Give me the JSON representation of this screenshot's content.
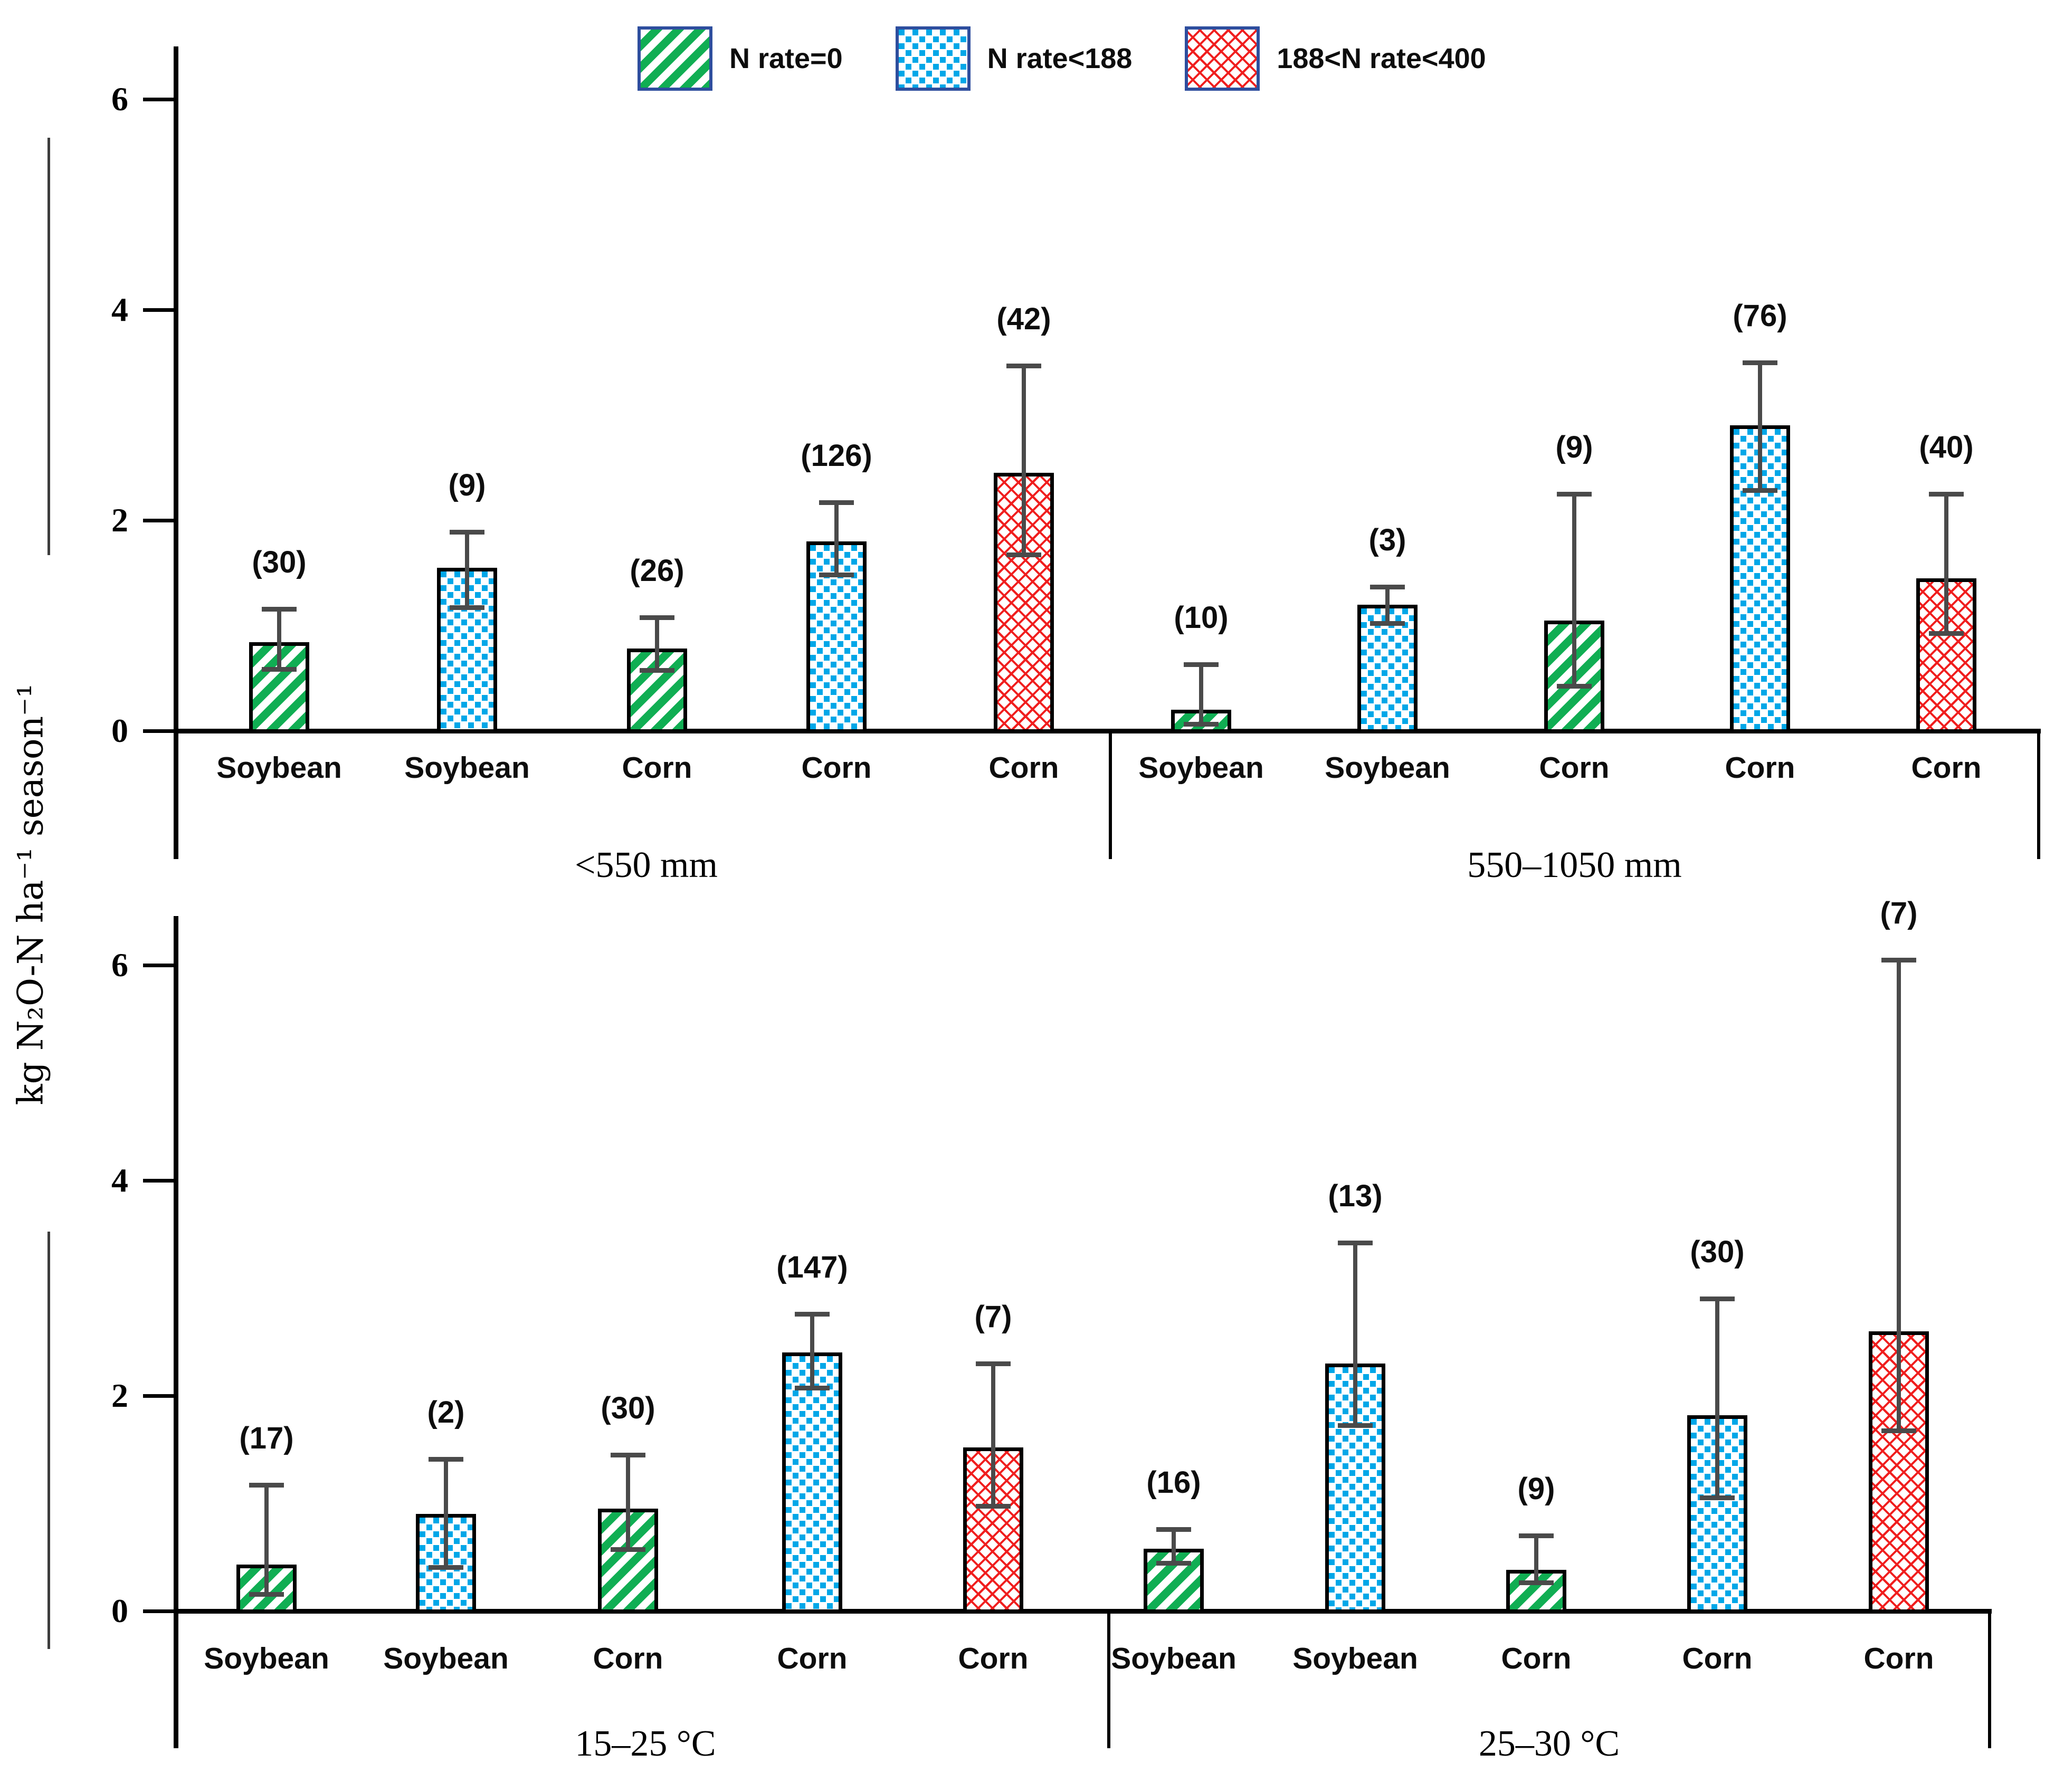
{
  "legend": {
    "items": [
      {
        "label": "N rate=0",
        "pattern": "green-diagonal-hatch"
      },
      {
        "label": "N rate<188",
        "pattern": "blue-dot-speckle"
      },
      {
        "label": "188<N rate<400",
        "pattern": "red-cross-hatch"
      }
    ]
  },
  "y_axis": {
    "title": "kg N₂O-N ha⁻¹ season⁻¹",
    "ticks": [
      0,
      2,
      4,
      6
    ],
    "tick_labels": [
      "0",
      "2",
      "4",
      "6"
    ],
    "ylim": [
      0,
      6.6
    ]
  },
  "chart_data": {
    "type": "bar",
    "title": "",
    "xlabel": "",
    "ylabel": "kg N2O-N ha-1 season-1",
    "grid": false,
    "legend_position": "top",
    "error_bars": true,
    "panels": [
      {
        "id": "top",
        "groups": [
          {
            "label": "<550 mm",
            "bars": [
              {
                "category": "Soybean",
                "series": "N rate=0",
                "n": 30,
                "count_label": "(30)",
                "value": 0.84,
                "err_low": 0.58,
                "err_high": 1.16
              },
              {
                "category": "Soybean",
                "series": "N rate<188",
                "n": 9,
                "count_label": "(9)",
                "value": 1.55,
                "err_low": 1.17,
                "err_high": 1.89
              },
              {
                "category": "Corn",
                "series": "N rate=0",
                "n": 26,
                "count_label": "(26)",
                "value": 0.78,
                "err_low": 0.57,
                "err_high": 1.08
              },
              {
                "category": "Corn",
                "series": "N rate<188",
                "n": 126,
                "count_label": "(126)",
                "value": 1.8,
                "err_low": 1.48,
                "err_high": 2.17
              },
              {
                "category": "Corn",
                "series": "188<N rate<400",
                "n": 42,
                "count_label": "(42)",
                "value": 2.45,
                "err_low": 1.67,
                "err_high": 3.47
              }
            ]
          },
          {
            "label": "550–1050 mm",
            "bars": [
              {
                "category": "Soybean",
                "series": "N rate=0",
                "n": 10,
                "count_label": "(10)",
                "value": 0.2,
                "err_low": 0.06,
                "err_high": 0.63
              },
              {
                "category": "Soybean",
                "series": "N rate<188",
                "n": 3,
                "count_label": "(3)",
                "value": 1.2,
                "err_low": 1.02,
                "err_high": 1.37
              },
              {
                "category": "Corn",
                "series": "N rate=0",
                "n": 9,
                "count_label": "(9)",
                "value": 1.05,
                "err_low": 0.42,
                "err_high": 2.25
              },
              {
                "category": "Corn",
                "series": "N rate<188",
                "n": 76,
                "count_label": "(76)",
                "value": 2.9,
                "err_low": 2.28,
                "err_high": 3.5
              },
              {
                "category": "Corn",
                "series": "188<N rate<400",
                "n": 40,
                "count_label": "(40)",
                "value": 1.45,
                "err_low": 0.92,
                "err_high": 2.25
              }
            ]
          }
        ]
      },
      {
        "id": "bottom",
        "groups": [
          {
            "label": "15–25 °C",
            "bars": [
              {
                "category": "Soybean",
                "series": "N rate=0",
                "n": 17,
                "count_label": "(17)",
                "value": 0.43,
                "err_low": 0.15,
                "err_high": 1.17
              },
              {
                "category": "Soybean",
                "series": "N rate<188",
                "n": 2,
                "count_label": "(2)",
                "value": 0.9,
                "err_low": 0.4,
                "err_high": 1.41
              },
              {
                "category": "Corn",
                "series": "N rate=0",
                "n": 30,
                "count_label": "(30)",
                "value": 0.95,
                "err_low": 0.57,
                "err_high": 1.45
              },
              {
                "category": "Corn",
                "series": "N rate<188",
                "n": 147,
                "count_label": "(147)",
                "value": 2.4,
                "err_low": 2.07,
                "err_high": 2.76
              },
              {
                "category": "Corn",
                "series": "188<N rate<400",
                "n": 7,
                "count_label": "(7)",
                "value": 1.52,
                "err_low": 0.97,
                "err_high": 2.3
              }
            ]
          },
          {
            "label": "25–30 °C",
            "bars": [
              {
                "category": "Soybean",
                "series": "N rate=0",
                "n": 16,
                "count_label": "(16)",
                "value": 0.58,
                "err_low": 0.44,
                "err_high": 0.76
              },
              {
                "category": "Soybean",
                "series": "N rate<188",
                "n": 13,
                "count_label": "(13)",
                "value": 2.3,
                "err_low": 1.72,
                "err_high": 3.42
              },
              {
                "category": "Corn",
                "series": "N rate=0",
                "n": 9,
                "count_label": "(9)",
                "value": 0.38,
                "err_low": 0.26,
                "err_high": 0.7
              },
              {
                "category": "Corn",
                "series": "N rate<188",
                "n": 30,
                "count_label": "(30)",
                "value": 1.82,
                "err_low": 1.05,
                "err_high": 2.9
              },
              {
                "category": "Corn",
                "series": "188<N rate<400",
                "n": 7,
                "count_label": "(7)",
                "value": 2.6,
                "err_low": 1.67,
                "err_high": 6.05
              }
            ]
          }
        ]
      }
    ],
    "colors": {
      "green_hatch": "#10AE53",
      "blue_dots": "#00A7E8",
      "red_hatch": "#F01E1E",
      "legend_swatch_border": "#2E4E9E",
      "error_bar": "#4a4a4a",
      "axis": "#000000"
    }
  }
}
